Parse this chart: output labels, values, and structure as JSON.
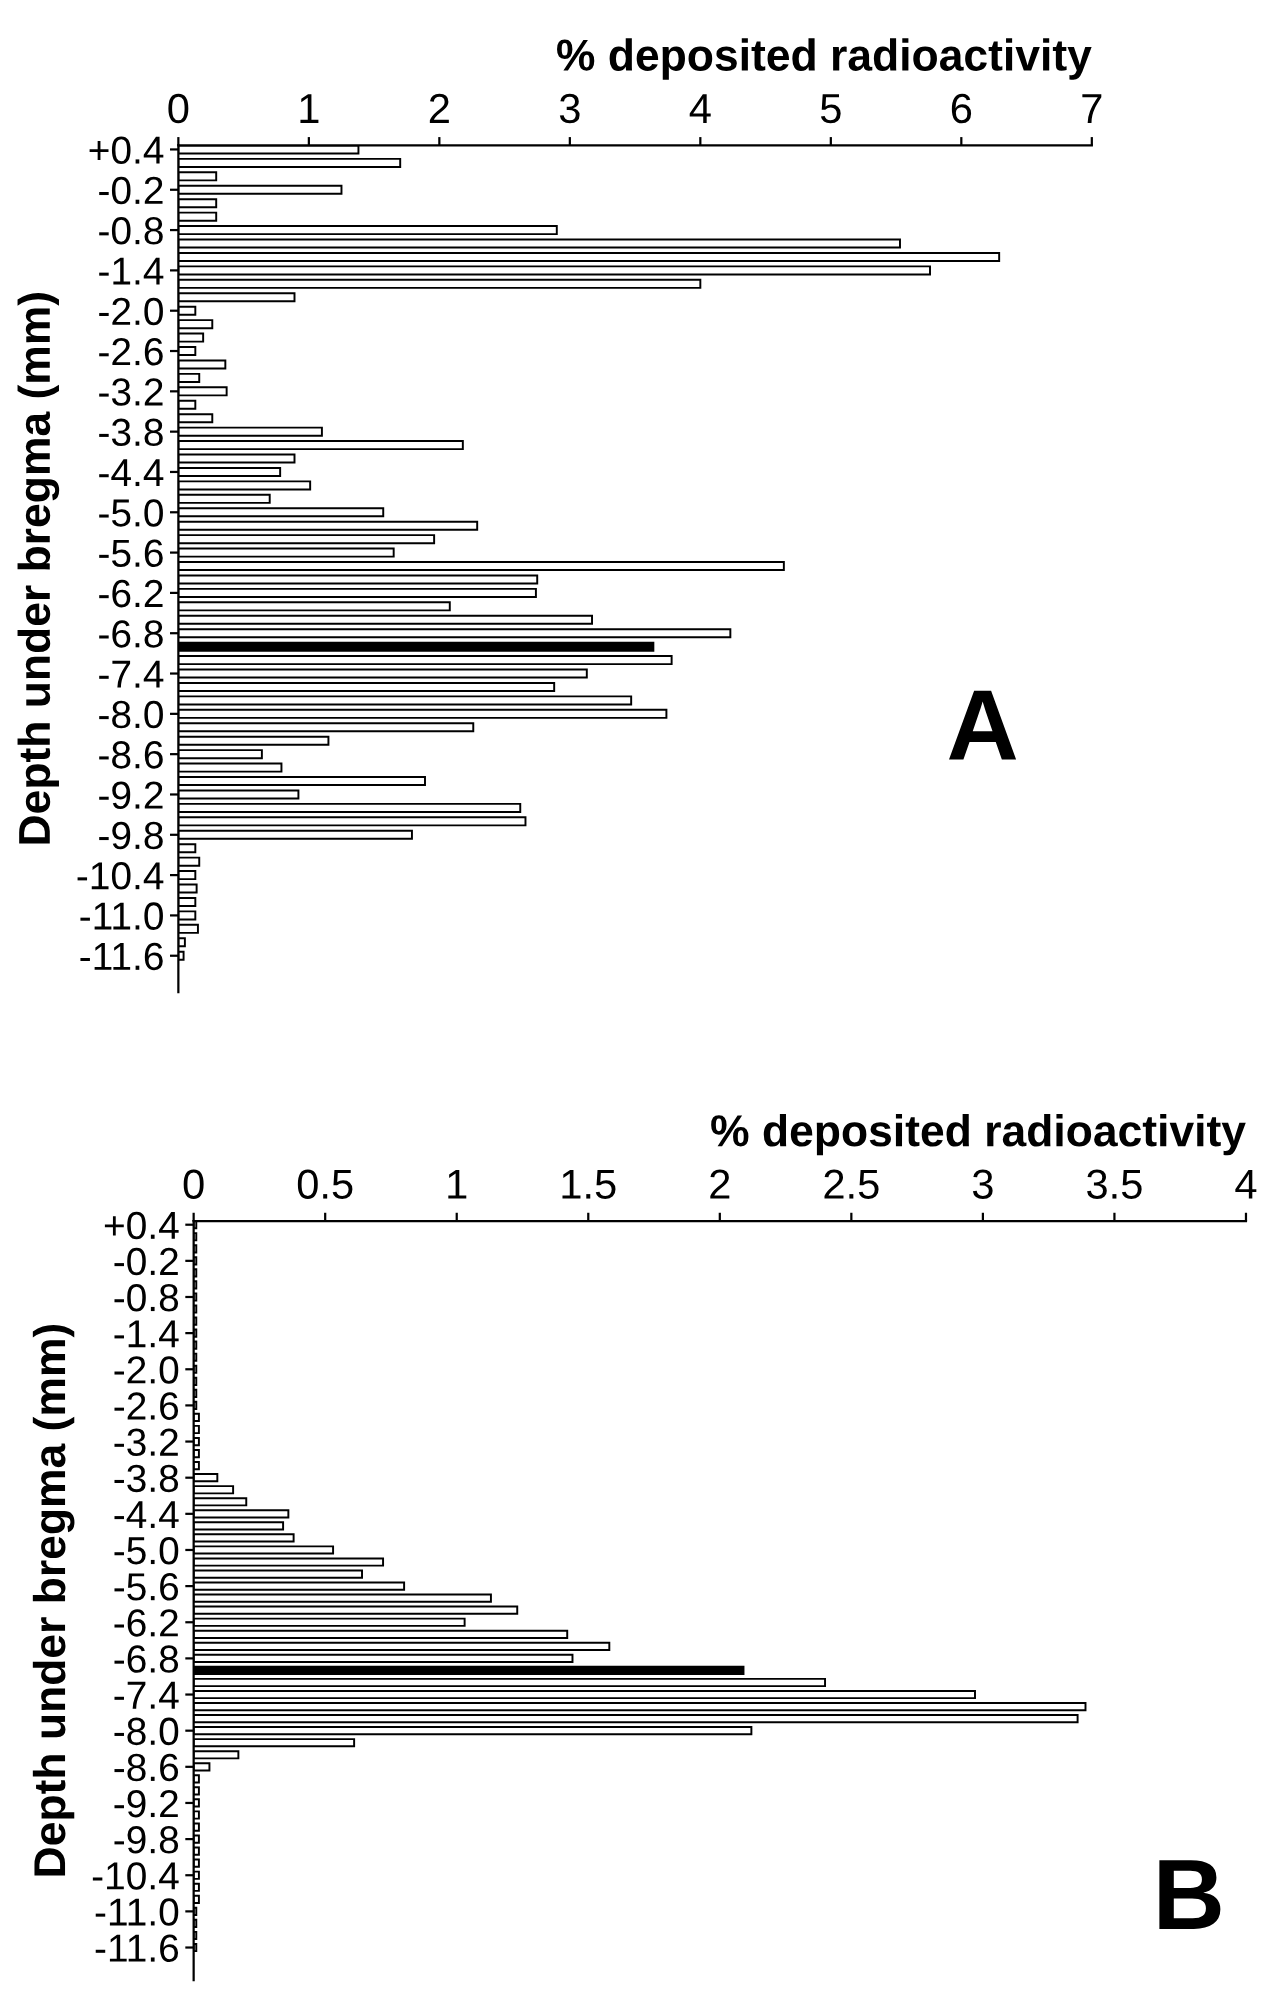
{
  "chart_data": [
    {
      "type": "bar",
      "orientation": "horizontal",
      "xlabel": "% deposited radioactivity",
      "ylabel": "Depth under bregma (mm)",
      "annotations": [
        "A"
      ],
      "categories": [
        "+0.4",
        null,
        null,
        "-0.2",
        null,
        null,
        "-0.8",
        null,
        null,
        "-1.4",
        null,
        null,
        "-2.0",
        null,
        null,
        "-2.6",
        null,
        null,
        "-3.2",
        null,
        null,
        "-3.8",
        null,
        null,
        "-4.4",
        null,
        null,
        "-5.0",
        null,
        null,
        "-5.6",
        null,
        null,
        "-6.2",
        null,
        null,
        "-6.8",
        null,
        null,
        "-7.4",
        null,
        null,
        "-8.0",
        null,
        null,
        "-8.6",
        null,
        null,
        "-9.2",
        null,
        null,
        "-9.8",
        null,
        null,
        "-10.4",
        null,
        null,
        "-11.0",
        null,
        null,
        "-11.6"
      ],
      "values": [
        1.38,
        1.7,
        0.29,
        1.25,
        0.29,
        0.29,
        2.9,
        5.53,
        6.29,
        5.76,
        4.0,
        0.89,
        0.13,
        0.26,
        0.19,
        0.13,
        0.36,
        0.16,
        0.37,
        0.13,
        0.26,
        1.1,
        2.18,
        0.89,
        0.78,
        1.01,
        0.7,
        1.57,
        2.29,
        1.96,
        1.65,
        4.64,
        2.75,
        2.74,
        2.08,
        3.17,
        4.23,
        3.64,
        3.78,
        3.13,
        2.88,
        3.47,
        3.74,
        2.26,
        1.15,
        0.64,
        0.79,
        1.89,
        0.92,
        2.62,
        2.66,
        1.79,
        0.13,
        0.16,
        0.13,
        0.14,
        0.13,
        0.13,
        0.15,
        0.05,
        0.04
      ],
      "colors": [
        "#ffffff",
        "#ffffff",
        "#ffffff",
        "#ffffff",
        "#ffffff",
        "#ffffff",
        "#ffffff",
        "#ffffff",
        "#ffffff",
        "#ffffff",
        "#ffffff",
        "#ffffff",
        "#ffffff",
        "#ffffff",
        "#ffffff",
        "#ffffff",
        "#ffffff",
        "#ffffff",
        "#ffffff",
        "#ffffff",
        "#ffffff",
        "#ffffff",
        "#ffffff",
        "#ffffff",
        "#ffffff",
        "#ffffff",
        "#ffffff",
        "#ffffff",
        "#ffffff",
        "#ffffff",
        "#ffffff",
        "#ffffff",
        "#ffffff",
        "#ffffff",
        "#ffffff",
        "#ffffff",
        "#ffffff",
        "#000000",
        "#ffffff",
        "#ffffff",
        "#ffffff",
        "#ffffff",
        "#ffffff",
        "#ffffff",
        "#ffffff",
        "#ffffff",
        "#ffffff",
        "#ffffff",
        "#ffffff",
        "#ffffff",
        "#ffffff",
        "#ffffff",
        "#ffffff",
        "#ffffff",
        "#ffffff",
        "#ffffff",
        "#ffffff",
        "#ffffff",
        "#ffffff",
        "#ffffff",
        "#ffffff"
      ],
      "xlim": [
        0,
        7
      ],
      "xticks": [
        0,
        1,
        2,
        3,
        4,
        5,
        6,
        7
      ],
      "grid": false,
      "legend": false
    },
    {
      "type": "bar",
      "orientation": "horizontal",
      "xlabel": "% deposited radioactivity",
      "ylabel": "Depth under bregma (mm)",
      "annotations": [
        "B"
      ],
      "categories": [
        "+0.4",
        null,
        null,
        "-0.2",
        null,
        null,
        "-0.8",
        null,
        null,
        "-1.4",
        null,
        null,
        "-2.0",
        null,
        null,
        "-2.6",
        null,
        null,
        "-3.2",
        null,
        null,
        "-3.8",
        null,
        null,
        "-4.4",
        null,
        null,
        "-5.0",
        null,
        null,
        "-5.6",
        null,
        null,
        "-6.2",
        null,
        null,
        "-6.8",
        null,
        null,
        "-7.4",
        null,
        null,
        "-8.0",
        null,
        null,
        "-8.6",
        null,
        null,
        "-9.2",
        null,
        null,
        "-9.8",
        null,
        null,
        "-10.4",
        null,
        null,
        "-11.0",
        null,
        null,
        "-11.6"
      ],
      "values": [
        0.01,
        0.01,
        0.01,
        0.01,
        0.01,
        0.01,
        0.01,
        0.01,
        0.01,
        0.01,
        0.01,
        0.01,
        0.01,
        0.01,
        0.01,
        0.01,
        0.02,
        0.02,
        0.02,
        0.02,
        0.02,
        0.09,
        0.15,
        0.2,
        0.36,
        0.34,
        0.38,
        0.53,
        0.72,
        0.64,
        0.8,
        1.13,
        1.23,
        1.03,
        1.42,
        1.58,
        1.44,
        2.09,
        2.4,
        2.97,
        3.39,
        3.36,
        2.12,
        0.61,
        0.17,
        0.06,
        0.02,
        0.02,
        0.02,
        0.02,
        0.02,
        0.02,
        0.02,
        0.02,
        0.02,
        0.02,
        0.02,
        0.01,
        0.01,
        0.01,
        0.01
      ],
      "colors": [
        "#ffffff",
        "#ffffff",
        "#ffffff",
        "#ffffff",
        "#ffffff",
        "#ffffff",
        "#ffffff",
        "#ffffff",
        "#ffffff",
        "#ffffff",
        "#ffffff",
        "#ffffff",
        "#ffffff",
        "#ffffff",
        "#ffffff",
        "#ffffff",
        "#ffffff",
        "#ffffff",
        "#ffffff",
        "#ffffff",
        "#ffffff",
        "#ffffff",
        "#ffffff",
        "#ffffff",
        "#ffffff",
        "#ffffff",
        "#ffffff",
        "#ffffff",
        "#ffffff",
        "#ffffff",
        "#ffffff",
        "#ffffff",
        "#ffffff",
        "#ffffff",
        "#ffffff",
        "#ffffff",
        "#ffffff",
        "#000000",
        "#ffffff",
        "#ffffff",
        "#ffffff",
        "#ffffff",
        "#ffffff",
        "#ffffff",
        "#ffffff",
        "#ffffff",
        "#ffffff",
        "#ffffff",
        "#ffffff",
        "#ffffff",
        "#ffffff",
        "#ffffff",
        "#ffffff",
        "#ffffff",
        "#ffffff",
        "#ffffff",
        "#ffffff",
        "#ffffff",
        "#ffffff",
        "#ffffff",
        "#ffffff"
      ],
      "xlim": [
        0,
        4
      ],
      "xticks": [
        0,
        0.5,
        1,
        1.5,
        2,
        2.5,
        3,
        3.5,
        4
      ],
      "grid": false,
      "legend": false
    }
  ]
}
